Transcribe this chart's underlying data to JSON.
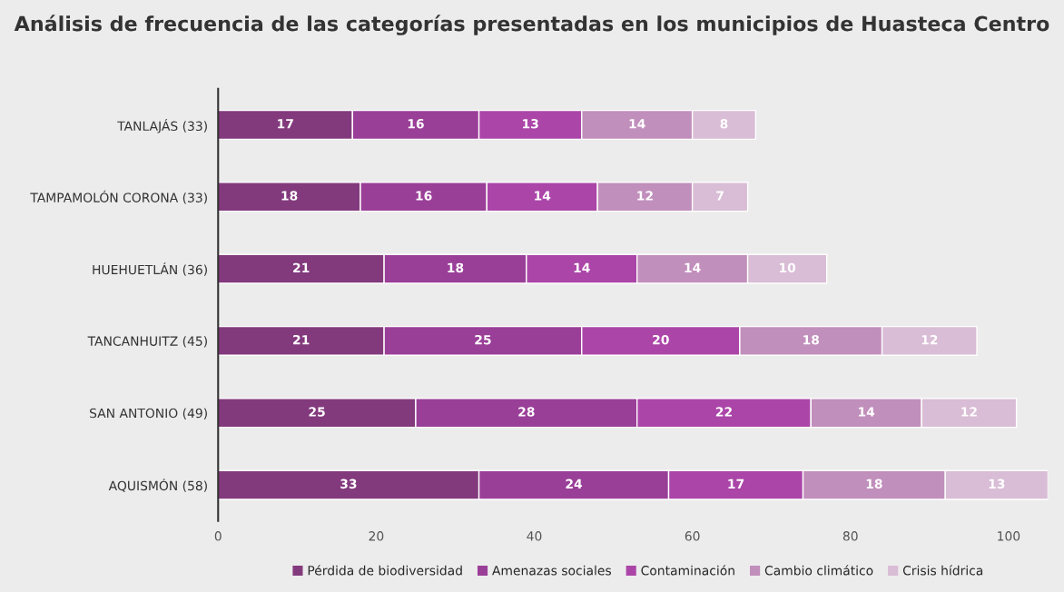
{
  "chart_data": {
    "type": "bar",
    "orientation": "horizontal",
    "stacked": true,
    "data_labels": true,
    "grid": false,
    "legend": "bottom",
    "title": "Análisis de frecuencia de las categorías presentadas en los municipios de Huasteca Centro",
    "categories": [
      "TANLAJÁS (33)",
      "TAMPAMOLÓN CORONA (33)",
      "HUEHUETLÁN (36)",
      "TANCANHUITZ (45)",
      "SAN ANTONIO (49)",
      "AQUISMÓN (58)"
    ],
    "xlim": [
      0,
      105
    ],
    "xticks": [
      0,
      20,
      40,
      60,
      80,
      100
    ],
    "series": [
      {
        "name": "Pérdida de biodiversidad",
        "color": "#833a7d",
        "values": [
          17,
          18,
          21,
          21,
          25,
          33
        ]
      },
      {
        "name": "Amenazas sociales",
        "color": "#9a3f98",
        "values": [
          16,
          16,
          18,
          25,
          28,
          24
        ]
      },
      {
        "name": "Contaminación",
        "color": "#ab46a8",
        "values": [
          13,
          14,
          14,
          20,
          22,
          17
        ]
      },
      {
        "name": "Cambio climático",
        "color": "#c18fbc",
        "values": [
          14,
          12,
          14,
          18,
          14,
          18
        ]
      },
      {
        "name": "Crisis hídrica",
        "color": "#d9bcd5",
        "values": [
          8,
          7,
          10,
          12,
          12,
          13
        ]
      }
    ]
  }
}
